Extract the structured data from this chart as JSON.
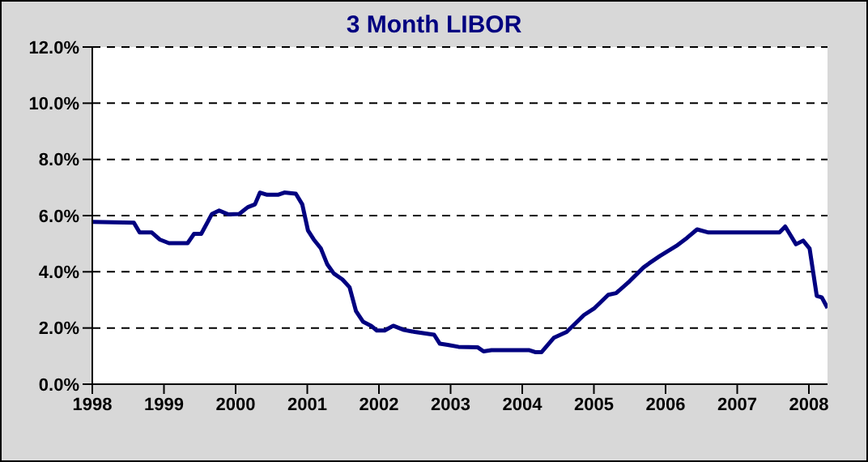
{
  "chart_data": {
    "type": "line",
    "title": "3 Month LIBOR",
    "x": [
      1998,
      1998.58,
      1998.66,
      1998.83,
      1998.94,
      1999.07,
      1999.33,
      1999.42,
      1999.52,
      1999.67,
      1999.77,
      1999.9,
      2000.05,
      2000.17,
      2000.27,
      2000.34,
      2000.44,
      2000.59,
      2000.68,
      2000.84,
      2000.93,
      2001.01,
      2001.09,
      2001.19,
      2001.28,
      2001.37,
      2001.49,
      2001.59,
      2001.68,
      2001.78,
      2001.89,
      2001.97,
      2002.08,
      2002.2,
      2002.35,
      2002.5,
      2002.77,
      2002.85,
      2002.96,
      2003.11,
      2003.38,
      2003.46,
      2003.57,
      2004.1,
      2004.18,
      2004.27,
      2004.44,
      2004.62,
      2004.86,
      2005.01,
      2005.2,
      2005.31,
      2005.5,
      2005.69,
      2005.77,
      2005.92,
      2006.15,
      2006.3,
      2006.44,
      2006.6,
      2007.59,
      2007.67,
      2007.82,
      2007.92,
      2008.01,
      2008.11,
      2008.18,
      2008.26
    ],
    "series": [
      {
        "color": "#000080",
        "values": [
          5.78,
          5.75,
          5.4,
          5.4,
          5.15,
          5.02,
          5.02,
          5.35,
          5.35,
          6.06,
          6.18,
          6.04,
          6.06,
          6.3,
          6.4,
          6.82,
          6.74,
          6.74,
          6.82,
          6.78,
          6.4,
          5.47,
          5.15,
          4.83,
          4.26,
          3.94,
          3.73,
          3.45,
          2.6,
          2.22,
          2.08,
          1.91,
          1.91,
          2.08,
          1.93,
          1.86,
          1.76,
          1.44,
          1.4,
          1.33,
          1.31,
          1.17,
          1.21,
          1.21,
          1.14,
          1.14,
          1.65,
          1.86,
          2.46,
          2.71,
          3.18,
          3.24,
          3.67,
          4.15,
          4.3,
          4.56,
          4.92,
          5.21,
          5.51,
          5.4,
          5.4,
          5.61,
          4.98,
          5.11,
          4.83,
          3.14,
          3.09,
          2.71
        ]
      }
    ],
    "xlim": [
      1998,
      2008.26
    ],
    "xticks": [
      1998,
      1999,
      2000,
      2001,
      2002,
      2003,
      2004,
      2005,
      2006,
      2007,
      2008
    ],
    "ylim": [
      0,
      12
    ],
    "yticks": [
      {
        "value": 0,
        "label": "0.0%"
      },
      {
        "value": 2,
        "label": "2.0%"
      },
      {
        "value": 4,
        "label": "4.0%"
      },
      {
        "value": 6,
        "label": "6.0%"
      },
      {
        "value": 8,
        "label": "8.0%"
      },
      {
        "value": 10,
        "label": "10.0%"
      },
      {
        "value": 12,
        "label": "12.0%"
      }
    ],
    "grid": "y",
    "line_style": "solid",
    "marker": "none",
    "legend": false
  }
}
